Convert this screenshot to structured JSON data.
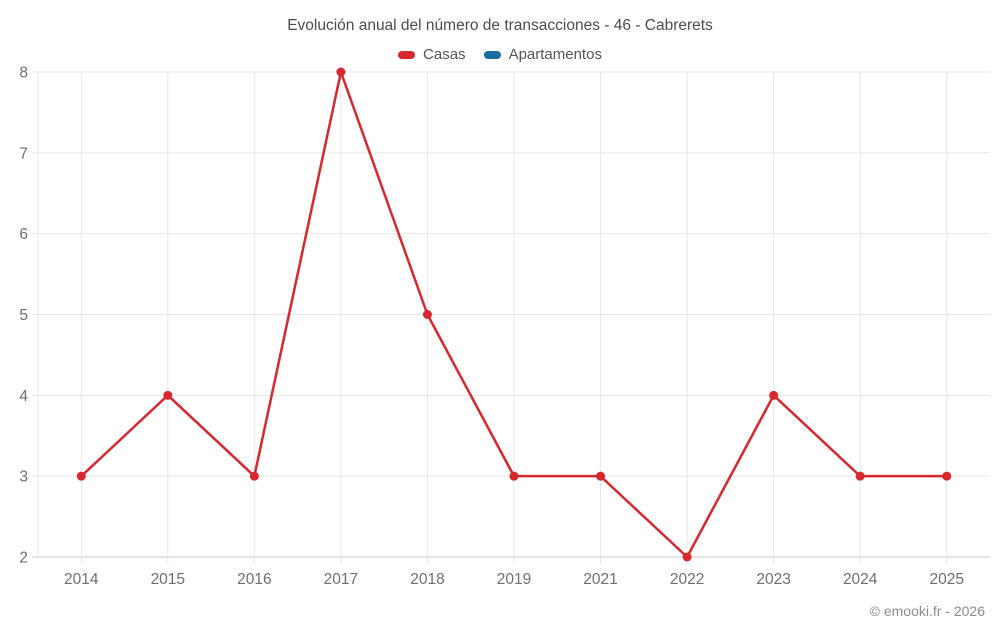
{
  "title": "Evolución anual del número de transacciones - 46 - Cabrerets",
  "footer": "© emooki.fr - 2026",
  "legend": {
    "items": [
      {
        "label": "Casas",
        "color": "#d7282e"
      },
      {
        "label": "Apartamentos",
        "color": "#1b6d9e"
      }
    ]
  },
  "colors": {
    "casas_red": "#d7282e",
    "apartamentos_blue": "#1b6d9e",
    "grid": "#e7e7e7",
    "axis": "#c8c8c8",
    "tick_label": "#6f6f6f"
  },
  "chart_data": {
    "type": "line",
    "title": "Evolución anual del número de transacciones - 46 - Cabrerets",
    "categories": [
      "2014",
      "2015",
      "2016",
      "2017",
      "2018",
      "2019",
      "2021",
      "2022",
      "2023",
      "2024",
      "2025"
    ],
    "series": [
      {
        "name": "Casas",
        "color": "#d7282e",
        "values": [
          3,
          4,
          3,
          8,
          5,
          3,
          3,
          2,
          4,
          3,
          3
        ]
      },
      {
        "name": "Apartamentos",
        "color": "#1b6d9e",
        "values": []
      }
    ],
    "xlabel": "",
    "ylabel": "",
    "ylim": [
      2,
      8
    ],
    "y_ticks": [
      2,
      3,
      4,
      5,
      6,
      7,
      8
    ],
    "grid": true,
    "legend_position": "top"
  }
}
